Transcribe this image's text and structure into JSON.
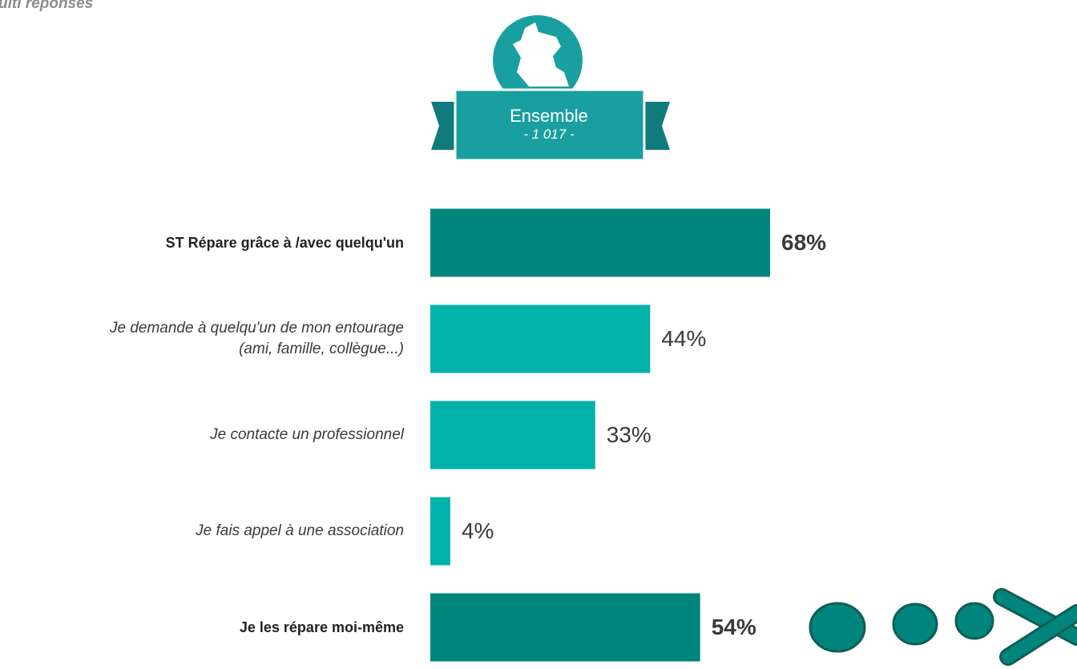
{
  "chart_data": {
    "type": "bar",
    "orientation": "horizontal",
    "subtitle": "ulti réponses",
    "badge": {
      "title": "Ensemble",
      "count": "- 1 017 -"
    },
    "categories": [
      "ST Répare grâce à /avec quelqu'un",
      "Je demande à quelqu'un de mon entourage\n(ami, famille, collègue...)",
      "Je contacte un professionnel",
      "Je fais appel à une association",
      "Je les répare moi-même"
    ],
    "values": [
      68,
      44,
      33,
      4,
      54
    ],
    "value_labels": [
      "68%",
      "44%",
      "33%",
      "4%",
      "54%"
    ],
    "colors": [
      "#00857d",
      "#00b2a9",
      "#00b2a9",
      "#00b2a9",
      "#00857d"
    ],
    "label_styles": [
      "bold",
      "italic",
      "italic",
      "italic",
      "bold"
    ]
  }
}
